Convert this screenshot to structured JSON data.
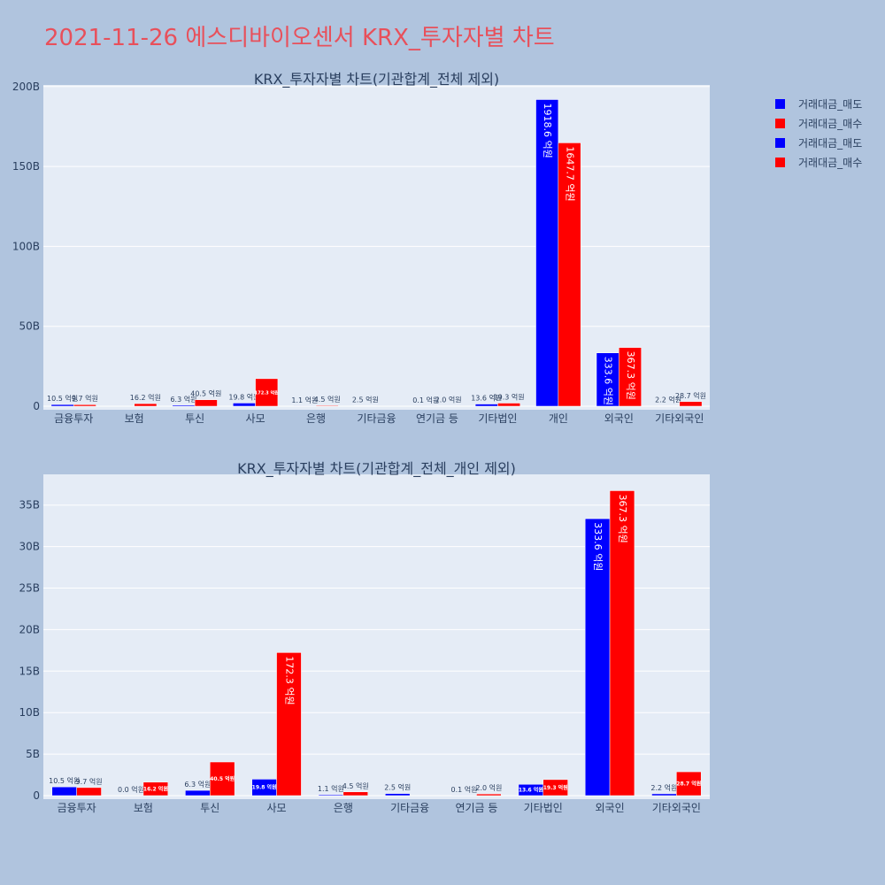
{
  "title": "2021-11-26 에스디바이오센서 KRX_투자자별 차트",
  "legend": [
    {
      "label": "거래대금_매도",
      "color": "#0000ff"
    },
    {
      "label": "거래대금_매수",
      "color": "#ff0000"
    },
    {
      "label": "거래대금_매도",
      "color": "#0000ff"
    },
    {
      "label": "거래대금_매수",
      "color": "#ff0000"
    }
  ],
  "colors": {
    "sell": "#0000ff",
    "buy": "#ff0000",
    "plot_bg": "#e5ecf6",
    "page_bg": "#b0c4de"
  },
  "chart_data": [
    {
      "type": "bar",
      "title": "KRX_투자자별 차트(기관합계_전체 제외)",
      "categories": [
        "금융투자",
        "보험",
        "투신",
        "사모",
        "은행",
        "기타금융",
        "연기금 등",
        "기타법인",
        "개인",
        "외국인",
        "기타외국인"
      ],
      "yticks": [
        "0",
        "50B",
        "100B",
        "150B",
        "200B"
      ],
      "ylim": [
        0,
        201
      ],
      "grid": true,
      "series": [
        {
          "name": "거래대금_매도",
          "values": [
            1.05,
            null,
            0.63,
            1.98,
            0.11,
            0.25,
            0.01,
            1.36,
            191.86,
            33.36,
            0.22
          ],
          "labels": [
            "10.5 억원",
            "",
            "6.3 억원",
            "19.8 억원",
            "1.1 억원",
            "2.5 억원",
            "0.1 억원",
            "13.6 억원",
            "1918.6 억원",
            "333.6 억원",
            "2.2 억원"
          ]
        },
        {
          "name": "거래대금_매수",
          "values": [
            0.97,
            1.62,
            4.05,
            17.23,
            0.45,
            null,
            0.2,
            1.93,
            164.77,
            36.73,
            2.87
          ],
          "labels": [
            "9.7 억원",
            "16.2 억원",
            "40.5 억원",
            "172.3 억원",
            "4.5 억원",
            "",
            "2.0 억원",
            "19.3 억원",
            "1647.7 억원",
            "367.3 억원",
            "28.7 억원"
          ]
        }
      ]
    },
    {
      "type": "bar",
      "title": "KRX_투자자별 차트(기관합계_전체_개인 제외)",
      "categories": [
        "금융투자",
        "보험",
        "투신",
        "사모",
        "은행",
        "기타금융",
        "연기금 등",
        "기타법인",
        "외국인",
        "기타외국인"
      ],
      "yticks": [
        "0",
        "5B",
        "10B",
        "15B",
        "20B",
        "25B",
        "30B",
        "35B"
      ],
      "ylim": [
        0,
        38.7
      ],
      "grid": true,
      "series": [
        {
          "name": "거래대금_매도",
          "values": [
            1.05,
            0.0,
            0.63,
            1.98,
            0.11,
            0.25,
            0.01,
            1.36,
            33.36,
            0.22
          ],
          "labels": [
            "10.5 억원",
            "0.0 억원",
            "6.3 억원",
            "19.8 억원",
            "1.1 억원",
            "2.5 억원",
            "0.1 억원",
            "13.6 억원",
            "333.6 억원",
            "2.2 억원"
          ]
        },
        {
          "name": "거래대금_매수",
          "values": [
            0.97,
            1.62,
            4.05,
            17.23,
            0.45,
            null,
            0.2,
            1.93,
            36.73,
            2.87
          ],
          "labels": [
            "9.7 억원",
            "16.2 억원",
            "40.5 억원",
            "172.3 억원",
            "4.5 억원",
            "",
            "2.0 억원",
            "19.3 억원",
            "367.3 억원",
            "28.7 억원"
          ]
        }
      ]
    }
  ]
}
